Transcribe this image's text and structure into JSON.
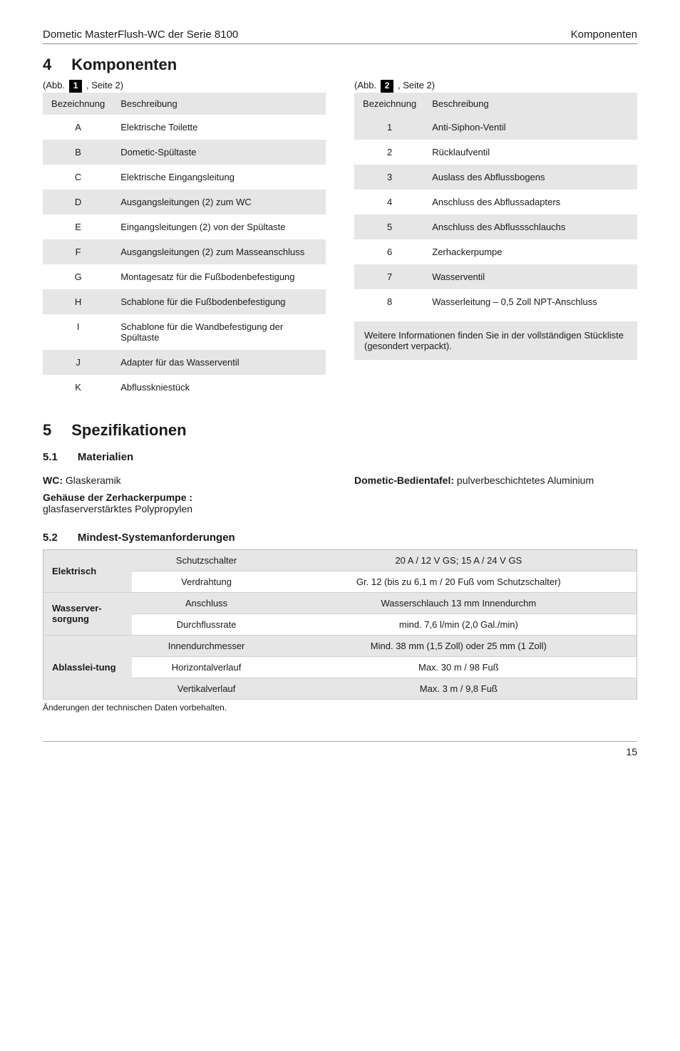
{
  "header": {
    "left": "Dometic MasterFlush-WC der Serie 8100",
    "right": "Komponenten"
  },
  "sec4": {
    "num": "4",
    "title": "Komponenten",
    "caption_left_prefix": "(Abb.",
    "caption_left_chip": "1",
    "caption_left_suffix": " , Seite 2)",
    "caption_right_prefix": "(Abb.",
    "caption_right_chip": "2",
    "caption_right_suffix": " , Seite 2)",
    "tableA": {
      "head1": "Bezeichnung",
      "head2": "Beschreibung",
      "rows": [
        {
          "k": "A",
          "v": "Elektrische Toilette"
        },
        {
          "k": "B",
          "v": "Dometic-Spültaste"
        },
        {
          "k": "C",
          "v": "Elektrische Eingangsleitung"
        },
        {
          "k": "D",
          "v": "Ausgangsleitungen (2) zum WC"
        },
        {
          "k": "E",
          "v": "Eingangsleitungen (2) von der Spültaste"
        },
        {
          "k": "F",
          "v": "Ausgangsleitungen (2) zum Masseanschluss"
        },
        {
          "k": "G",
          "v": "Montagesatz für die Fußbodenbefestigung"
        },
        {
          "k": "H",
          "v": "Schablone für die Fußbodenbefestigung"
        },
        {
          "k": "I",
          "v": "Schablone für die Wandbefestigung der Spültaste"
        },
        {
          "k": "J",
          "v": "Adapter für das Wasserventil"
        },
        {
          "k": "K",
          "v": "Abflusskniestück"
        }
      ],
      "stripe_even": "#e6e6e6",
      "stripe_odd": "#ffffff"
    },
    "tableB": {
      "head1": "Bezeichnung",
      "head2": "Beschreibung",
      "rows": [
        {
          "k": "1",
          "v": "Anti-Siphon-Ventil"
        },
        {
          "k": "2",
          "v": "Rücklaufventil"
        },
        {
          "k": "3",
          "v": "Auslass des Abflussbogens"
        },
        {
          "k": "4",
          "v": "Anschluss des Abflussadapters"
        },
        {
          "k": "5",
          "v": "Anschluss des Abflussschlauchs"
        },
        {
          "k": "6",
          "v": "Zerhackerpumpe"
        },
        {
          "k": "7",
          "v": "Wasserventil"
        },
        {
          "k": "8",
          "v": "Wasserleitung – 0,5 Zoll NPT-Anschluss"
        }
      ],
      "stripe_even": "#e6e6e6",
      "stripe_odd": "#ffffff",
      "note": "Weitere Informationen finden Sie in der vollständigen Stückliste (gesondert verpackt).",
      "note_bg": "#e6e6e6"
    }
  },
  "sec5": {
    "num": "5",
    "title": "Spezifikationen",
    "sub1_num": "5.1",
    "sub1_title": "Materialien",
    "wc_label": "WC:",
    "wc_val": " Glaskeramik",
    "pump_label": "Gehäuse der Zerhackerpumpe :",
    "pump_val": "glasfaserverstärktes Polypropylen",
    "panel_label": "Dometic-Bedientafel:",
    "panel_val": " pulverbeschichtetes Aluminium",
    "sub2_num": "5.2",
    "sub2_title": "Mindest-Systemanforderungen"
  },
  "sys_table": {
    "groups": [
      {
        "cat": "Elektrisch",
        "rows": [
          {
            "sub": "Schutzschalter",
            "val": "20 A / 12 V GS; 15 A / 24 V GS",
            "stripe": 0
          },
          {
            "sub": "Verdrahtung",
            "val": "Gr. 12 (bis zu 6,1 m / 20 Fuß vom Schutzschalter)",
            "stripe": 1
          }
        ]
      },
      {
        "cat": "Wasserver-sorgung",
        "rows": [
          {
            "sub": "Anschluss",
            "val": "Wasserschlauch 13 mm Innendurchm",
            "stripe": 0
          },
          {
            "sub": "Durchflussrate",
            "val": "mind. 7,6 l/min (2,0 Gal./min)",
            "stripe": 1
          }
        ]
      },
      {
        "cat": "Ablasslei-tung",
        "rows": [
          {
            "sub": "Innendurchmesser",
            "val": "Mind. 38 mm (1,5 Zoll) oder 25 mm (1 Zoll)",
            "stripe": 0
          },
          {
            "sub": "Horizontalverlauf",
            "val": "Max. 30 m / 98 Fuß",
            "stripe": 1
          },
          {
            "sub": "Vertikalverlauf",
            "val": "Max. 3 m / 9,8 Fuß",
            "stripe": 0
          }
        ]
      }
    ],
    "stripe_colors": [
      "#e6e6e6",
      "#ffffff"
    ],
    "cat_bg": "#e6e6e6"
  },
  "footnote": "Änderungen der technischen Daten vorbehalten.",
  "page_num": "15"
}
